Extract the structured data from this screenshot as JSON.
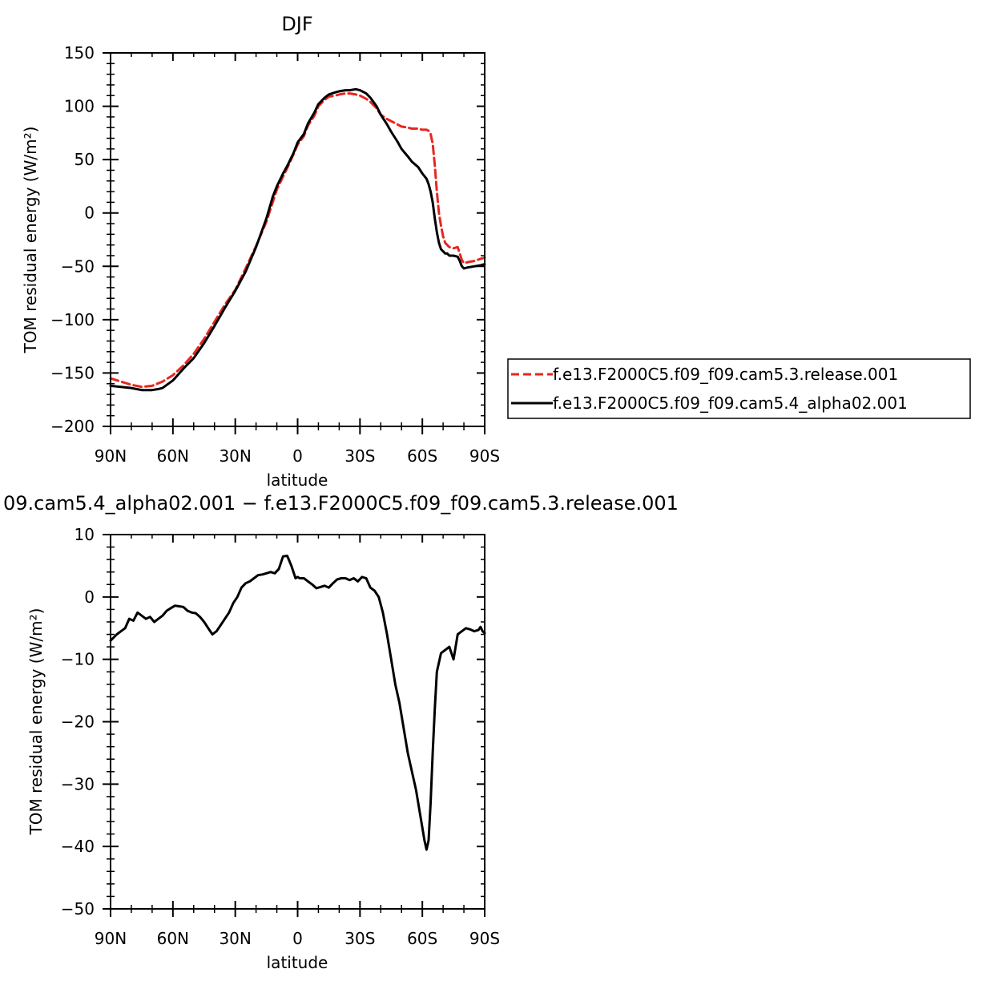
{
  "chart_data": [
    {
      "type": "line",
      "title": "DJF",
      "xlabel": "latitude",
      "ylabel": "TOM residual energy (W/m²)",
      "xlim": [
        90,
        -90
      ],
      "ylim": [
        -200,
        150
      ],
      "x_ticks": [
        {
          "value": 90,
          "label": "90N"
        },
        {
          "value": 60,
          "label": "60N"
        },
        {
          "value": 30,
          "label": "30N"
        },
        {
          "value": 0,
          "label": "0"
        },
        {
          "value": -30,
          "label": "30S"
        },
        {
          "value": -60,
          "label": "60S"
        },
        {
          "value": -90,
          "label": "90S"
        }
      ],
      "y_ticks": [
        150,
        100,
        50,
        0,
        -50,
        -100,
        -150,
        -200
      ],
      "y_minor": 10,
      "x_minor": 10,
      "legend_position": "right",
      "series": [
        {
          "name": "f.e13.F2000C5.f09_f09.cam5.3.release.001",
          "color": "#e8261f",
          "dash": "dashed",
          "x": [
            90,
            85,
            80,
            75,
            70,
            65,
            60,
            55,
            50,
            45,
            40,
            35,
            30,
            25,
            20,
            15,
            12,
            10,
            7,
            5,
            2,
            0,
            -3,
            -5,
            -8,
            -10,
            -13,
            -15,
            -18,
            -20,
            -23,
            -25,
            -28,
            -30,
            -33,
            -35,
            -38,
            -40,
            -43,
            -45,
            -48,
            -50,
            -53,
            -55,
            -58,
            -60,
            -62,
            -63,
            -64,
            -65,
            -66,
            -67,
            -68,
            -69,
            -70,
            -71,
            -72,
            -73,
            -75,
            -77,
            -78,
            -79,
            -80,
            -82,
            -85,
            -88,
            -90
          ],
          "y": [
            -155,
            -158,
            -161,
            -163,
            -162,
            -158,
            -152,
            -143,
            -132,
            -118,
            -102,
            -86,
            -72,
            -52,
            -31,
            -8,
            10,
            22,
            34,
            42,
            55,
            64,
            72,
            82,
            91,
            100,
            106,
            109,
            110,
            111,
            112,
            112,
            111,
            110,
            107,
            104,
            98,
            92,
            88,
            86,
            83,
            81,
            80,
            79,
            79,
            78,
            78,
            77,
            74,
            65,
            45,
            20,
            0,
            -12,
            -22,
            -28,
            -30,
            -32,
            -33,
            -32,
            -38,
            -44,
            -47,
            -46,
            -45,
            -43,
            -42
          ]
        },
        {
          "name": "f.e13.F2000C5.f09_f09.cam5.4_alpha02.001",
          "color": "#000000",
          "dash": "solid",
          "x": [
            90,
            85,
            80,
            75,
            70,
            67,
            65,
            60,
            55,
            50,
            45,
            40,
            35,
            30,
            25,
            20,
            15,
            12,
            10,
            7,
            5,
            2,
            0,
            -3,
            -5,
            -8,
            -10,
            -13,
            -15,
            -18,
            -20,
            -23,
            -25,
            -28,
            -30,
            -33,
            -35,
            -38,
            -40,
            -43,
            -45,
            -48,
            -50,
            -53,
            -55,
            -58,
            -60,
            -62,
            -63,
            -64,
            -65,
            -66,
            -67,
            -68,
            -69,
            -70,
            -71,
            -72,
            -73,
            -75,
            -77,
            -78,
            -79,
            -80,
            -82,
            -85,
            -88,
            -90
          ],
          "y": [
            -162,
            -163,
            -164,
            -166,
            -166,
            -165,
            -164,
            -157,
            -146,
            -136,
            -122,
            -106,
            -89,
            -73,
            -55,
            -32,
            -5,
            15,
            25,
            37,
            44,
            56,
            66,
            74,
            84,
            94,
            102,
            108,
            111,
            113,
            114,
            115,
            115,
            116,
            115,
            112,
            108,
            100,
            92,
            83,
            76,
            67,
            60,
            53,
            48,
            43,
            37,
            32,
            27,
            20,
            10,
            -5,
            -18,
            -28,
            -34,
            -36,
            -38,
            -38,
            -40,
            -40,
            -41,
            -45,
            -50,
            -52,
            -51,
            -50,
            -49,
            -48
          ]
        }
      ]
    },
    {
      "type": "line",
      "title": "09.cam5.4_alpha02.001 − f.e13.F2000C5.f09_f09.cam5.3.release.001",
      "xlabel": "latitude",
      "ylabel": "TOM residual energy (W/m²)",
      "xlim": [
        90,
        -90
      ],
      "ylim": [
        -50,
        10
      ],
      "x_ticks": [
        {
          "value": 90,
          "label": "90N"
        },
        {
          "value": 60,
          "label": "60N"
        },
        {
          "value": 30,
          "label": "30N"
        },
        {
          "value": 0,
          "label": "0"
        },
        {
          "value": -30,
          "label": "30S"
        },
        {
          "value": -60,
          "label": "60S"
        },
        {
          "value": -90,
          "label": "90S"
        }
      ],
      "y_ticks": [
        10,
        0,
        -10,
        -20,
        -30,
        -40,
        -50
      ],
      "y_minor": 2,
      "x_minor": 10,
      "series": [
        {
          "color": "#000000",
          "dash": "solid",
          "x": [
            90,
            87,
            85,
            83,
            81,
            79,
            77,
            75,
            73,
            71,
            69,
            67,
            65,
            63,
            61,
            59,
            57,
            55,
            53,
            51,
            49,
            47,
            45,
            43,
            41,
            39,
            37,
            35,
            33,
            31,
            29,
            27,
            25,
            23,
            21,
            19,
            17,
            15,
            13,
            11,
            9,
            7,
            5,
            3,
            1,
            0,
            -1,
            -3,
            -5,
            -7,
            -9,
            -11,
            -13,
            -15,
            -17,
            -19,
            -21,
            -23,
            -25,
            -27,
            -29,
            -31,
            -33,
            -35,
            -37,
            -39,
            -41,
            -43,
            -45,
            -47,
            -49,
            -51,
            -53,
            -55,
            -57,
            -59,
            -61,
            -62,
            -63,
            -64,
            -65,
            -66,
            -67,
            -69,
            -71,
            -73,
            -75,
            -77,
            -79,
            -81,
            -83,
            -85,
            -87,
            -88,
            -89,
            -90
          ],
          "y": [
            -7,
            -6,
            -5.5,
            -5,
            -3.5,
            -3.8,
            -2.5,
            -3,
            -3.5,
            -3.2,
            -4,
            -3.5,
            -3,
            -2.2,
            -1.8,
            -1.4,
            -1.5,
            -1.6,
            -2.2,
            -2.5,
            -2.6,
            -3.2,
            -4,
            -5,
            -6,
            -5.5,
            -4.5,
            -3.5,
            -2.5,
            -1,
            0,
            1.5,
            2.2,
            2.5,
            3,
            3.5,
            3.6,
            3.8,
            4,
            3.8,
            4.5,
            6.5,
            6.6,
            5,
            3,
            3.2,
            3,
            3,
            2.5,
            2,
            1.4,
            1.6,
            1.8,
            1.5,
            2.2,
            2.8,
            3,
            3,
            2.7,
            3,
            2.5,
            3.2,
            3,
            1.5,
            1,
            0,
            -2.5,
            -6,
            -10,
            -14,
            -17,
            -21,
            -25,
            -28,
            -31,
            -35,
            -39,
            -40.5,
            -39,
            -33,
            -25,
            -18,
            -12,
            -9,
            -8.5,
            -8,
            -10,
            -6,
            -5.5,
            -5,
            -5.2,
            -5.5,
            -5.3,
            -4.8,
            -5.5,
            -5.8
          ]
        }
      ]
    }
  ]
}
